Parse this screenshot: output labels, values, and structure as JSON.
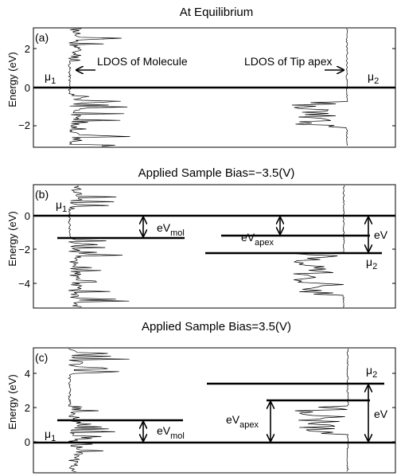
{
  "panels": [
    {
      "title": "At Equilibrium",
      "panel_label": "(a)",
      "ylabel": "Energy (eV)",
      "yticks": [
        "2",
        "0",
        "−2"
      ],
      "mu_left": {
        "base": "μ",
        "sub": "1"
      },
      "mu_right": {
        "base": "μ",
        "sub": "2"
      },
      "annotations": [
        "LDOS of Molecule",
        "LDOS of Tip apex"
      ]
    },
    {
      "title": "Applied Sample Bias=−3.5(V)",
      "panel_label": "(b)",
      "ylabel": "Energy (eV)",
      "yticks": [
        "0",
        "−2",
        "−4"
      ],
      "mu_left": {
        "base": "μ",
        "sub": "1"
      },
      "mu_right": {
        "base": "μ",
        "sub": "2"
      },
      "labels": {
        "mol": {
          "base": "eV",
          "sub": "mol"
        },
        "apex": {
          "base": "eV",
          "sub": "apex"
        },
        "total": "eV"
      }
    },
    {
      "title": "Applied Sample Bias=3.5(V)",
      "panel_label": "(c)",
      "ylabel": "Energy (eV)",
      "yticks": [
        "4",
        "2",
        "0"
      ],
      "mu_left": {
        "base": "μ",
        "sub": "1"
      },
      "mu_right": {
        "base": "μ",
        "sub": "2"
      },
      "labels": {
        "mol": {
          "base": "eV",
          "sub": "mol"
        },
        "apex": {
          "base": "eV",
          "sub": "apex"
        },
        "total": "eV"
      }
    }
  ]
}
